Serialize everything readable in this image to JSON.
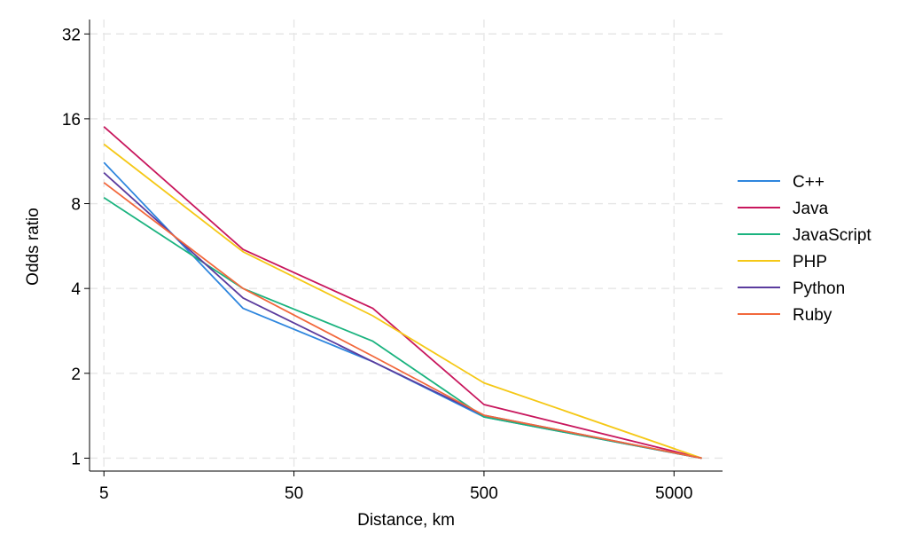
{
  "chart_data": {
    "type": "line",
    "title": "",
    "xlabel": "Distance, km",
    "ylabel": "Odds ratio",
    "x_scale": "log",
    "y_scale": "log",
    "xlim": [
      4.2,
      9000
    ],
    "ylim": [
      0.9,
      36
    ],
    "x_ticks": [
      {
        "value": 5,
        "label": "5"
      },
      {
        "value": 50,
        "label": "50"
      },
      {
        "value": 500,
        "label": "500"
      },
      {
        "value": 5000,
        "label": "5000"
      }
    ],
    "y_ticks": [
      {
        "value": 1,
        "label": "1"
      },
      {
        "value": 2,
        "label": "2"
      },
      {
        "value": 4,
        "label": "4"
      },
      {
        "value": 8,
        "label": "8"
      },
      {
        "value": 16,
        "label": "16"
      },
      {
        "value": 32,
        "label": "32"
      }
    ],
    "grid": true,
    "legend_position": "right",
    "x": [
      5,
      27,
      130,
      500,
      7000
    ],
    "series": [
      {
        "name": "C++",
        "color": "#2e86de",
        "values": [
          11.2,
          3.4,
          2.2,
          1.4,
          1.0
        ]
      },
      {
        "name": "Java",
        "color": "#c8175d",
        "values": [
          15.0,
          5.5,
          3.4,
          1.55,
          1.0
        ]
      },
      {
        "name": "JavaScript",
        "color": "#1bb37f",
        "values": [
          8.4,
          4.0,
          2.6,
          1.4,
          1.0
        ]
      },
      {
        "name": "PHP",
        "color": "#f5c816",
        "values": [
          13.0,
          5.4,
          3.2,
          1.85,
          1.0
        ]
      },
      {
        "name": "Python",
        "color": "#5b3c9e",
        "values": [
          10.3,
          3.7,
          2.2,
          1.42,
          1.0
        ]
      },
      {
        "name": "Ruby",
        "color": "#f2683c",
        "values": [
          9.5,
          4.0,
          2.3,
          1.42,
          1.0
        ]
      }
    ]
  }
}
